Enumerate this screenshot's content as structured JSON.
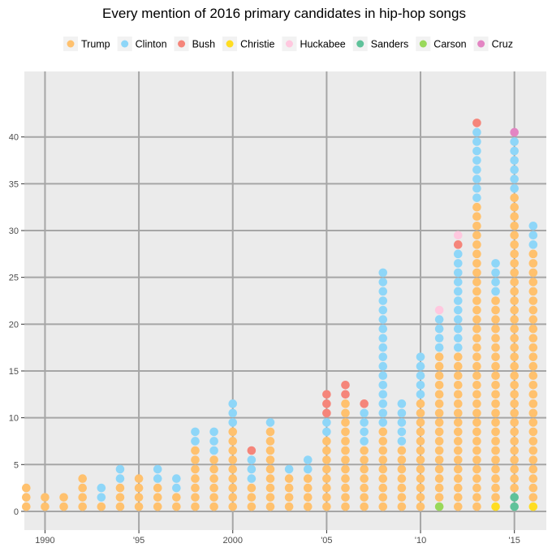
{
  "chart_data": {
    "type": "scatter",
    "title": "Every mention of 2016 primary candidates in hip-hop songs",
    "legend_position": "top",
    "grid": true,
    "xlim": [
      1988.9,
      2016.7
    ],
    "ylim": [
      -2,
      47
    ],
    "x_ticks": [
      {
        "value": 1990,
        "label": "1990"
      },
      {
        "value": 1995,
        "label": "'95"
      },
      {
        "value": 2000,
        "label": "2000"
      },
      {
        "value": 2005,
        "label": "'05"
      },
      {
        "value": 2010,
        "label": "'10"
      },
      {
        "value": 2015,
        "label": "'15"
      }
    ],
    "y_ticks": [
      {
        "value": 0,
        "label": "0"
      },
      {
        "value": 5,
        "label": "5"
      },
      {
        "value": 10,
        "label": "10"
      },
      {
        "value": 15,
        "label": "15"
      },
      {
        "value": 20,
        "label": "20"
      },
      {
        "value": 25,
        "label": "25"
      },
      {
        "value": 30,
        "label": "30"
      },
      {
        "value": 35,
        "label": "35"
      },
      {
        "value": 40,
        "label": "40"
      }
    ],
    "series": [
      {
        "name": "Trump",
        "color": "#ffc16e"
      },
      {
        "name": "Clinton",
        "color": "#8ed6f8"
      },
      {
        "name": "Bush",
        "color": "#f5857a"
      },
      {
        "name": "Christie",
        "color": "#ffdd22"
      },
      {
        "name": "Huckabee",
        "color": "#ffc8df"
      },
      {
        "name": "Sanders",
        "color": "#5fc29a"
      },
      {
        "name": "Carson",
        "color": "#99d85a"
      },
      {
        "name": "Cruz",
        "color": "#e385c3"
      }
    ],
    "years": [
      {
        "x": 1989,
        "counts": {
          "Trump": 3
        }
      },
      {
        "x": 1990,
        "counts": {
          "Trump": 2
        }
      },
      {
        "x": 1991,
        "counts": {
          "Trump": 2
        }
      },
      {
        "x": 1992,
        "counts": {
          "Trump": 4
        }
      },
      {
        "x": 1993,
        "counts": {
          "Trump": 1,
          "Clinton": 2
        }
      },
      {
        "x": 1994,
        "counts": {
          "Trump": 3,
          "Clinton": 2
        }
      },
      {
        "x": 1995,
        "counts": {
          "Trump": 4
        }
      },
      {
        "x": 1996,
        "counts": {
          "Trump": 3,
          "Clinton": 2
        }
      },
      {
        "x": 1997,
        "counts": {
          "Trump": 2,
          "Clinton": 2
        }
      },
      {
        "x": 1998,
        "counts": {
          "Trump": 7,
          "Clinton": 2
        }
      },
      {
        "x": 1999,
        "counts": {
          "Trump": 6,
          "Clinton": 3
        }
      },
      {
        "x": 2000,
        "counts": {
          "Trump": 9,
          "Clinton": 3
        }
      },
      {
        "x": 2001,
        "counts": {
          "Trump": 3,
          "Clinton": 3,
          "Bush": 1
        }
      },
      {
        "x": 2002,
        "counts": {
          "Trump": 9,
          "Clinton": 1
        }
      },
      {
        "x": 2003,
        "counts": {
          "Trump": 4,
          "Clinton": 1
        }
      },
      {
        "x": 2004,
        "counts": {
          "Trump": 4,
          "Clinton": 2
        }
      },
      {
        "x": 2005,
        "counts": {
          "Trump": 8,
          "Clinton": 2,
          "Bush": 3
        }
      },
      {
        "x": 2006,
        "counts": {
          "Trump": 12,
          "Bush": 2
        }
      },
      {
        "x": 2007,
        "counts": {
          "Trump": 7,
          "Clinton": 4,
          "Bush": 1
        }
      },
      {
        "x": 2008,
        "counts": {
          "Trump": 9,
          "Clinton": 17
        }
      },
      {
        "x": 2009,
        "counts": {
          "Trump": 7,
          "Clinton": 5
        }
      },
      {
        "x": 2010,
        "counts": {
          "Trump": 12,
          "Clinton": 5
        }
      },
      {
        "x": 2011,
        "counts": {
          "Carson": 1,
          "Trump": 16,
          "Clinton": 4,
          "Huckabee": 1
        }
      },
      {
        "x": 2012,
        "counts": {
          "Trump": 17,
          "Clinton": 11,
          "Bush": 1,
          "Huckabee": 1
        }
      },
      {
        "x": 2013,
        "counts": {
          "Trump": 33,
          "Clinton": 8,
          "Bush": 1
        }
      },
      {
        "x": 2014,
        "counts": {
          "Christie": 1,
          "Trump": 22,
          "Clinton": 4
        }
      },
      {
        "x": 2015,
        "counts": {
          "Sanders": 2,
          "Trump": 32,
          "Clinton": 6,
          "Cruz": 1
        }
      },
      {
        "x": 2016,
        "counts": {
          "Christie": 1,
          "Trump": 27,
          "Clinton": 3
        }
      }
    ]
  }
}
